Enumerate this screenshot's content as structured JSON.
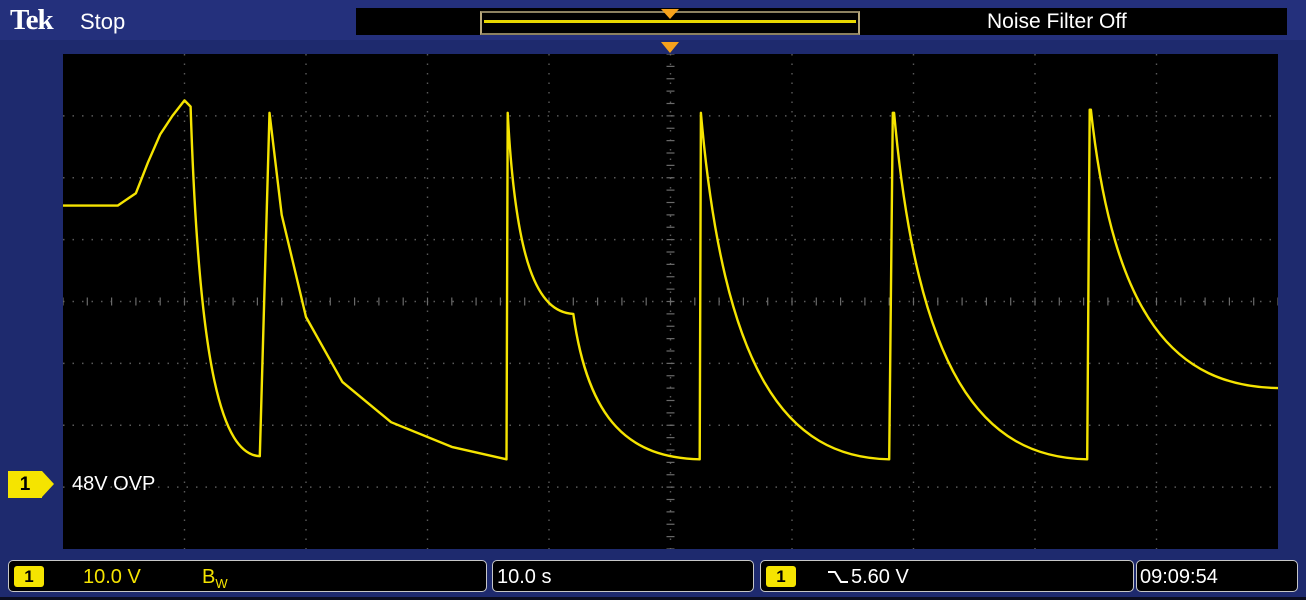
{
  "header": {
    "brand": "Tek",
    "run_status": "Stop",
    "noise_filter": "Noise Filter Off"
  },
  "channel": {
    "marker": "1",
    "trace_label": "48V OVP",
    "color": "#f5e400"
  },
  "footer": {
    "ch_badge": "1",
    "ch_scale": "10.0 V",
    "bw_indicator": "BW",
    "timebase": "10.0 s",
    "trig_badge": "1",
    "trig_slope_icon": "falling-edge-icon",
    "trig_level": "5.60 V",
    "clock": "09:09:54"
  },
  "chart_data": {
    "type": "line",
    "title": "",
    "xlabel": "",
    "ylabel": "",
    "grid": true,
    "divisions": {
      "x": 10,
      "y": 8
    },
    "series": [
      {
        "name": "48V OVP",
        "x_divisions": [
          0,
          0.45,
          0.6,
          0.7,
          0.8,
          0.9,
          1.0,
          1.05,
          1.62,
          1.7,
          1.8,
          2.0,
          2.3,
          2.7,
          3.2,
          3.65,
          3.66,
          4.2,
          5.24,
          5.25,
          6.8,
          6.83,
          6.84,
          8.43,
          8.45,
          8.46,
          10.0
        ],
        "y_divisions_above_ch1_ground": [
          5.05,
          5.05,
          5.25,
          5.75,
          6.2,
          6.5,
          6.75,
          6.65,
          1.0,
          6.55,
          4.9,
          3.25,
          2.2,
          1.55,
          1.15,
          0.95,
          6.55,
          3.3,
          0.95,
          6.55,
          0.95,
          6.55,
          6.55,
          0.95,
          6.6,
          6.6,
          2.1
        ]
      }
    ]
  }
}
